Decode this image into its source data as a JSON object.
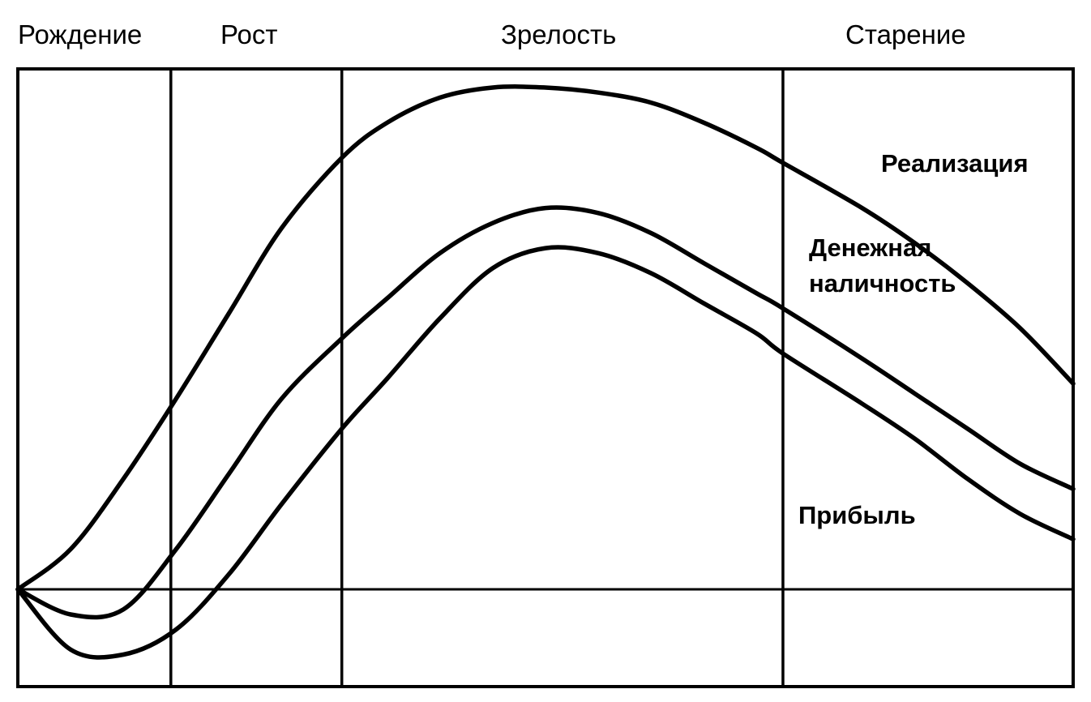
{
  "chart_data": {
    "type": "line",
    "title": "",
    "xlabel": "",
    "ylabel": "",
    "stages": [
      "Рождение",
      "Рост",
      "Зрелость",
      "Старение"
    ],
    "stage_boundaries": [
      0,
      0.145,
      0.307,
      0.725,
      1
    ],
    "x": [
      0,
      0.05,
      0.1,
      0.15,
      0.2,
      0.25,
      0.307,
      0.35,
      0.4,
      0.45,
      0.5,
      0.55,
      0.6,
      0.65,
      0.7,
      0.725,
      0.8,
      0.85,
      0.9,
      0.95,
      1.0
    ],
    "ylim": [
      -0.2,
      1.0
    ],
    "grid": false,
    "legend": "inline labels at right",
    "series": [
      {
        "name": "Реализация",
        "values": [
          0.0,
          0.08,
          0.22,
          0.38,
          0.55,
          0.72,
          0.86,
          0.93,
          0.98,
          1.0,
          1.0,
          0.99,
          0.97,
          0.93,
          0.88,
          0.85,
          0.76,
          0.69,
          0.61,
          0.52,
          0.41
        ]
      },
      {
        "name": "Денежная наличность",
        "values": [
          0.0,
          -0.05,
          -0.04,
          0.08,
          0.23,
          0.38,
          0.5,
          0.58,
          0.67,
          0.73,
          0.76,
          0.75,
          0.71,
          0.65,
          0.59,
          0.56,
          0.46,
          0.39,
          0.32,
          0.25,
          0.2
        ]
      },
      {
        "name": "Прибыль",
        "values": [
          0.0,
          -0.12,
          -0.13,
          -0.08,
          0.03,
          0.17,
          0.32,
          0.42,
          0.54,
          0.64,
          0.68,
          0.67,
          0.63,
          0.57,
          0.51,
          0.47,
          0.37,
          0.3,
          0.22,
          0.15,
          0.1
        ]
      }
    ]
  }
}
